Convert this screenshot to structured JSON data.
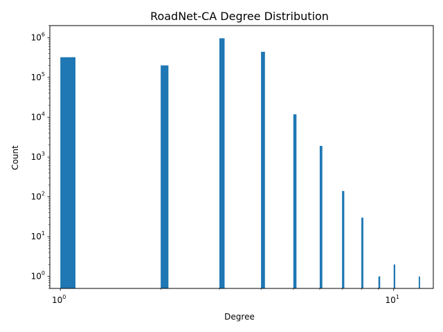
{
  "chart_data": {
    "type": "bar",
    "title": "RoadNet-CA Degree Distribution",
    "xlabel": "Degree",
    "ylabel": "Count",
    "xscale": "log",
    "yscale": "log",
    "xlim": [
      0.93,
      13.15
    ],
    "ylim": [
      0.5,
      2000000
    ],
    "grid": false,
    "legend": "none",
    "bar_color": "#1f77b4",
    "x_ticks": [
      {
        "value": 1,
        "base": "10",
        "exp": "0"
      },
      {
        "value": 10,
        "base": "10",
        "exp": "1"
      }
    ],
    "y_ticks": [
      {
        "value": 1,
        "base": "10",
        "exp": "0"
      },
      {
        "value": 10,
        "base": "10",
        "exp": "1"
      },
      {
        "value": 100,
        "base": "10",
        "exp": "2"
      },
      {
        "value": 1000,
        "base": "10",
        "exp": "3"
      },
      {
        "value": 10000,
        "base": "10",
        "exp": "4"
      },
      {
        "value": 100000,
        "base": "10",
        "exp": "5"
      },
      {
        "value": 1000000,
        "base": "10",
        "exp": "6"
      }
    ],
    "bins": [
      {
        "degree": 1,
        "count": 321000
      },
      {
        "degree": 2,
        "count": 200000
      },
      {
        "degree": 3,
        "count": 960000
      },
      {
        "degree": 4,
        "count": 440000
      },
      {
        "degree": 5,
        "count": 11800
      },
      {
        "degree": 6,
        "count": 1900
      },
      {
        "degree": 7,
        "count": 140
      },
      {
        "degree": 8,
        "count": 30
      },
      {
        "degree": 9,
        "count": 1
      },
      {
        "degree": 10,
        "count": 2
      },
      {
        "degree": 12,
        "count": 1
      }
    ]
  }
}
